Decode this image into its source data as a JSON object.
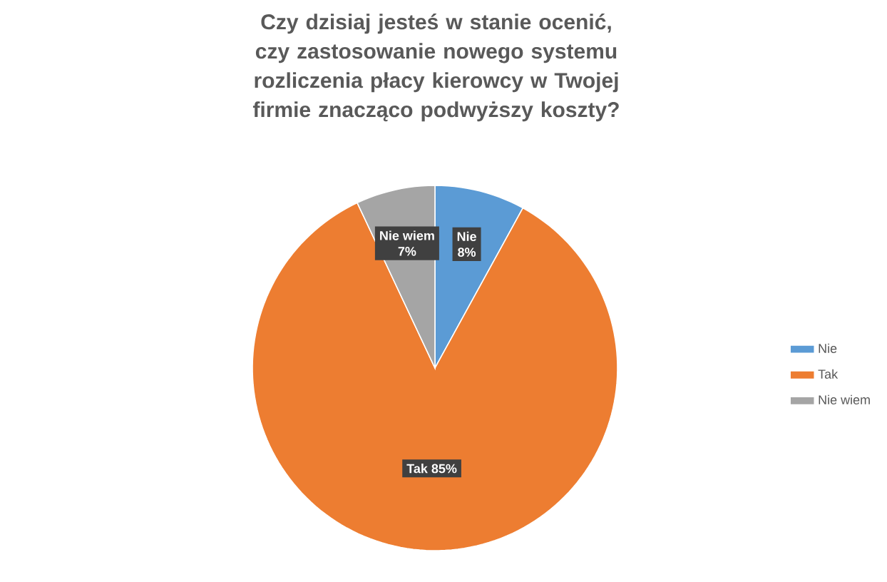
{
  "chart_data": {
    "type": "pie",
    "title": "Czy dzisiaj jesteś w stanie ocenić, czy zastosowanie nowego systemu rozliczenia płacy kierowcy w Twojej firmie znacząco podwyższy koszty?",
    "categories": [
      "Nie",
      "Tak",
      "Nie wiem"
    ],
    "values": [
      8,
      85,
      7
    ],
    "value_labels": [
      "8%",
      "85%",
      "7%"
    ],
    "colors": [
      "#5b9bd5",
      "#ed7d31",
      "#a5a5a5"
    ],
    "legend": "right"
  }
}
